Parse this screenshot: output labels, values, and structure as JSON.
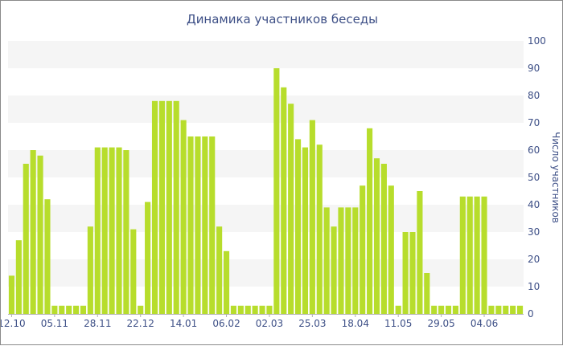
{
  "chart_data": {
    "type": "bar",
    "title": "Динамика участников беседы",
    "xlabel": "",
    "ylabel": "Число участников",
    "ylim": [
      0,
      100
    ],
    "yticks": [
      0,
      10,
      20,
      30,
      40,
      50,
      60,
      70,
      80,
      90,
      100
    ],
    "grid": "horizontal alternating bands",
    "bar_color": "#b7dd2c",
    "band_color": "#f5f5f5",
    "text_color": "#3d4f86",
    "xtick_labels": [
      {
        "index": 0,
        "label": "12.10"
      },
      {
        "index": 6,
        "label": "05.11"
      },
      {
        "index": 12,
        "label": "28.11"
      },
      {
        "index": 18,
        "label": "22.12"
      },
      {
        "index": 24,
        "label": "14.01"
      },
      {
        "index": 30,
        "label": "06.02"
      },
      {
        "index": 36,
        "label": "02.03"
      },
      {
        "index": 42,
        "label": "25.03"
      },
      {
        "index": 48,
        "label": "18.04"
      },
      {
        "index": 54,
        "label": "11.05"
      },
      {
        "index": 60,
        "label": "29.05"
      },
      {
        "index": 66,
        "label": "04.06"
      }
    ],
    "values": [
      14,
      27,
      55,
      60,
      58,
      42,
      3,
      3,
      3,
      3,
      3,
      32,
      61,
      61,
      61,
      61,
      60,
      31,
      3,
      41,
      78,
      78,
      78,
      78,
      71,
      65,
      65,
      65,
      65,
      32,
      23,
      3,
      3,
      3,
      3,
      3,
      3,
      90,
      83,
      77,
      64,
      61,
      71,
      62,
      39,
      32,
      39,
      39,
      39,
      47,
      68,
      57,
      55,
      47,
      3,
      30,
      30,
      45,
      15,
      3,
      3,
      3,
      3,
      43,
      43,
      43,
      43,
      3,
      3,
      3,
      3,
      3
    ]
  }
}
